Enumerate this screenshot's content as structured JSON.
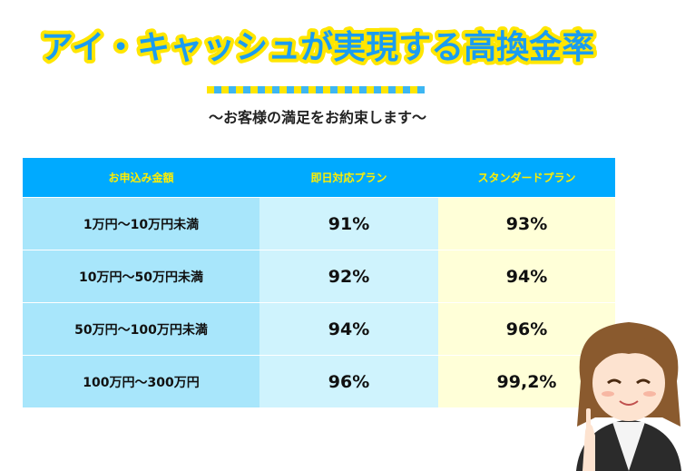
{
  "header": {
    "title": "アイ・キャッシュが実現する高換金率",
    "subtitle": "～お客様の満足をお約束します～"
  },
  "table": {
    "headers": [
      "お申込み金額",
      "即日対応プラン",
      "スタンダードプラン"
    ],
    "rows": [
      [
        "1万円～10万円未満",
        "91%",
        "93%"
      ],
      [
        "10万円～50万円未満",
        "92%",
        "94%"
      ],
      [
        "50万円～100万円未満",
        "94%",
        "96%"
      ],
      [
        "100万円～300万円",
        "96%",
        "99,2%"
      ]
    ]
  }
}
